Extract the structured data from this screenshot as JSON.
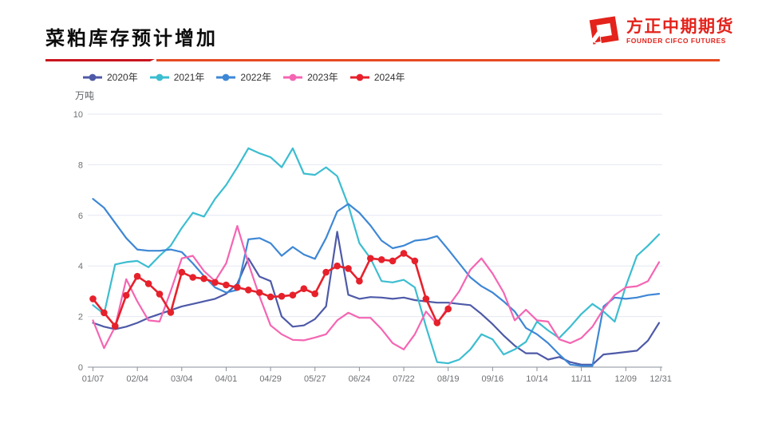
{
  "header": {
    "title": "菜粕库存预计增加"
  },
  "logo": {
    "cn": "方正中期期货",
    "en": "FOUNDER CIFCO FUTURES",
    "color": "#e3231c"
  },
  "accent_colors": {
    "rule_left": "#c9151e",
    "rule_right": "#e64a22"
  },
  "chart_data": {
    "type": "line",
    "title": "菜粕库存预计增加",
    "unit_label": "万吨",
    "ylim": [
      0,
      10
    ],
    "yticks": [
      0,
      2,
      4,
      6,
      8,
      10
    ],
    "grid": "horizontal",
    "legend_position": "top-left",
    "x_tick_labels": [
      "01/07",
      "02/04",
      "03/04",
      "04/01",
      "04/29",
      "05/27",
      "06/24",
      "07/22",
      "08/19",
      "09/16",
      "10/14",
      "11/11",
      "12/09",
      "12/31"
    ],
    "x_tick_weeks": [
      0,
      4,
      8,
      12,
      16,
      20,
      24,
      28,
      32,
      36,
      40,
      44,
      48,
      51.15
    ],
    "x_total_weeks": 51,
    "series": [
      {
        "name": "2020年",
        "color": "#4e5aa8",
        "marker": false,
        "values": [
          1.75,
          1.6,
          1.5,
          1.6,
          1.75,
          1.95,
          2.1,
          2.25,
          2.4,
          2.5,
          2.6,
          2.7,
          2.9,
          3.3,
          4.3,
          3.58,
          3.4,
          2.0,
          1.6,
          1.65,
          1.9,
          2.4,
          5.35,
          2.86,
          2.7,
          2.77,
          2.75,
          2.7,
          2.75,
          2.65,
          2.6,
          2.55,
          2.55,
          2.5,
          2.45,
          2.1,
          1.7,
          1.25,
          0.85,
          0.55,
          0.55,
          0.3,
          0.4,
          0.2,
          0.1,
          0.1,
          0.5,
          0.55,
          0.6,
          0.65,
          1.05,
          1.75
        ]
      },
      {
        "name": "2021年",
        "color": "#3cbdd0",
        "marker": false,
        "values": [
          2.45,
          2.1,
          4.06,
          4.15,
          4.2,
          3.95,
          4.4,
          4.8,
          5.5,
          6.1,
          5.95,
          6.65,
          7.2,
          7.9,
          8.65,
          8.45,
          8.3,
          7.9,
          8.65,
          7.65,
          7.6,
          7.9,
          7.55,
          6.4,
          4.9,
          4.3,
          3.4,
          3.35,
          3.45,
          3.15,
          1.6,
          0.2,
          0.15,
          0.3,
          0.7,
          1.3,
          1.1,
          0.5,
          0.7,
          1.0,
          1.8,
          1.45,
          1.15,
          1.6,
          2.1,
          2.5,
          2.2,
          1.8,
          3.2,
          4.4,
          4.8,
          5.25
        ]
      },
      {
        "name": "2022年",
        "color": "#3e87d5",
        "marker": false,
        "values": [
          6.65,
          6.3,
          5.7,
          5.1,
          4.65,
          4.6,
          4.6,
          4.65,
          4.55,
          4.1,
          3.6,
          3.15,
          2.95,
          3.05,
          5.05,
          5.1,
          4.9,
          4.4,
          4.75,
          4.45,
          4.28,
          5.1,
          6.15,
          6.45,
          6.1,
          5.6,
          5.0,
          4.7,
          4.8,
          5.0,
          5.05,
          5.18,
          4.65,
          4.1,
          3.55,
          3.2,
          2.95,
          2.6,
          2.2,
          1.55,
          1.3,
          0.95,
          0.5,
          0.1,
          0.05,
          0.05,
          2.4,
          2.75,
          2.7,
          2.75,
          2.85,
          2.9
        ]
      },
      {
        "name": "2023年",
        "color": "#f565b2",
        "marker": false,
        "values": [
          1.85,
          0.75,
          1.6,
          3.48,
          2.6,
          1.85,
          1.8,
          3.0,
          4.3,
          4.4,
          3.8,
          3.4,
          4.1,
          5.58,
          4.1,
          2.8,
          1.65,
          1.3,
          1.08,
          1.06,
          1.17,
          1.3,
          1.85,
          2.15,
          1.95,
          1.95,
          1.5,
          0.95,
          0.7,
          1.3,
          2.2,
          1.7,
          2.4,
          3.0,
          3.85,
          4.3,
          3.7,
          2.95,
          1.85,
          2.27,
          1.85,
          1.8,
          1.1,
          0.95,
          1.15,
          1.6,
          2.3,
          2.85,
          3.15,
          3.2,
          3.4,
          4.15
        ]
      },
      {
        "name": "2024年",
        "color": "#e6212b",
        "marker": true,
        "values": [
          2.7,
          2.15,
          1.62,
          2.84,
          3.59,
          3.3,
          2.89,
          2.16,
          3.75,
          3.55,
          3.5,
          3.35,
          3.25,
          3.15,
          3.05,
          2.95,
          2.78,
          2.8,
          2.85,
          3.1,
          2.9,
          3.75,
          4.0,
          3.9,
          3.4,
          4.3,
          4.25,
          4.2,
          4.5,
          4.2,
          2.7,
          1.75,
          2.3
        ]
      }
    ]
  }
}
